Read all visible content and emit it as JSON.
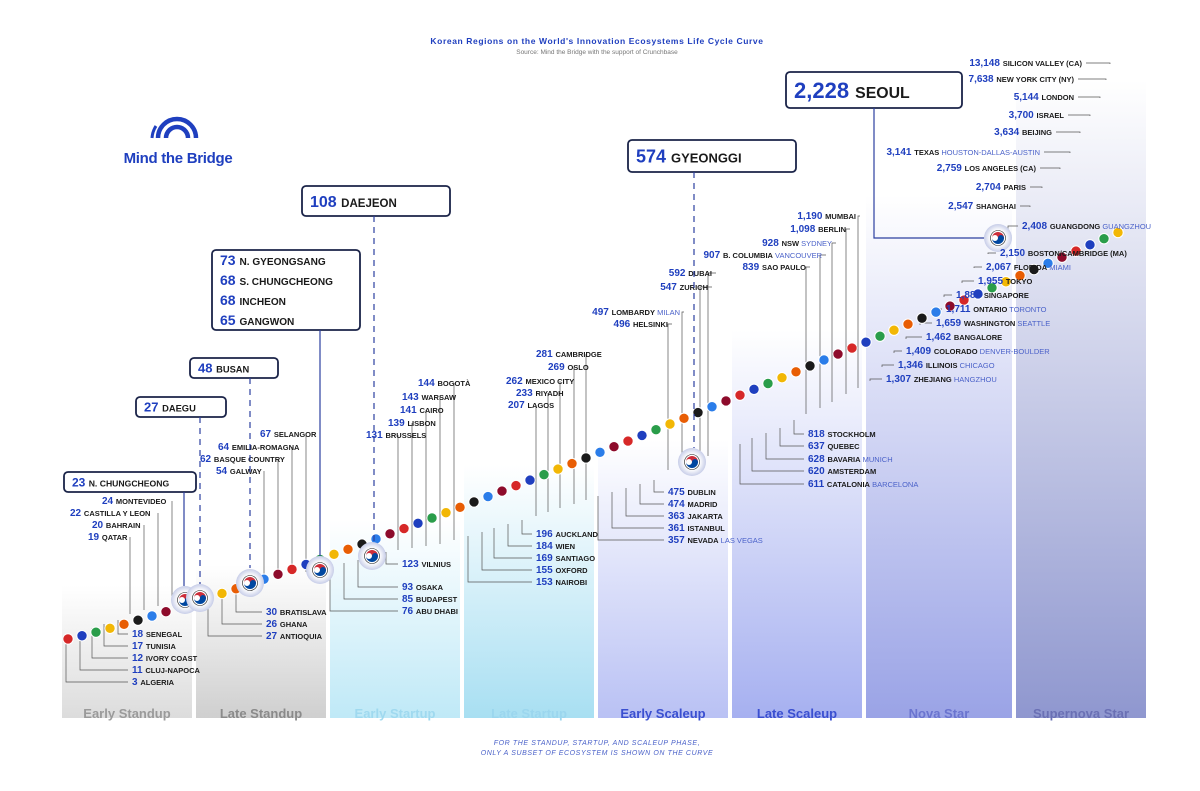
{
  "header": {
    "title": "Korean Regions on the World's Innovation Ecosystems Life Cycle Curve",
    "source": "Source: Mind the Bridge with the support of Crunchbase"
  },
  "logo": {
    "text": "Mind the Bridge"
  },
  "footnote": {
    "line1": "FOR THE STANDUP, STARTUP, AND SCALEUP PHASE,",
    "line2": "ONLY A SUBSET OF ECOSYSTEM IS SHOWN ON THE CURVE"
  },
  "colors": {
    "accent": "#1f3fbf",
    "dark": "#1a2348",
    "city": "#1a1a1a",
    "sub": "#4b62c9"
  },
  "chart_data": {
    "type": "scatter",
    "title": "Korean Regions on the World's Innovation Ecosystems Life Cycle Curve",
    "value_label": "count",
    "phases": [
      {
        "name": "Early Standup"
      },
      {
        "name": "Late Standup"
      },
      {
        "name": "Early Startup"
      },
      {
        "name": "Late Startup"
      },
      {
        "name": "Early Scaleup"
      },
      {
        "name": "Late Scaleup"
      },
      {
        "name": "Nova Star"
      },
      {
        "name": "Supernova Star"
      }
    ],
    "korean_regions": [
      {
        "value": "2,228",
        "name": "SEOUL"
      },
      {
        "value": "574",
        "name": "GYEONGGI"
      },
      {
        "value": "108",
        "name": "DAEJEON"
      },
      {
        "value": "73",
        "name": "N. GYEONGSANG"
      },
      {
        "value": "68",
        "name": "S. CHUNGCHEONG"
      },
      {
        "value": "68",
        "name": "INCHEON"
      },
      {
        "value": "65",
        "name": "GANGWON"
      },
      {
        "value": "48",
        "name": "BUSAN"
      },
      {
        "value": "27",
        "name": "DAEGU"
      },
      {
        "value": "23",
        "name": "N. CHUNGCHEONG"
      }
    ],
    "ecosystems": [
      {
        "value": "13,148",
        "name": "SILICON VALLEY (CA)"
      },
      {
        "value": "7,638",
        "name": "NEW YORK CITY (NY)"
      },
      {
        "value": "5,144",
        "name": "LONDON"
      },
      {
        "value": "3,700",
        "name": "ISRAEL"
      },
      {
        "value": "3,634",
        "name": "BEIJING"
      },
      {
        "value": "3,141",
        "name": "TEXAS",
        "sub": "HOUSTON-DALLAS-AUSTIN"
      },
      {
        "value": "2,759",
        "name": "LOS ANGELES (CA)"
      },
      {
        "value": "2,704",
        "name": "PARIS"
      },
      {
        "value": "2,547",
        "name": "SHANGHAI"
      },
      {
        "value": "2,408",
        "name": "GUANGDONG",
        "sub": "GUANGZHOU"
      },
      {
        "value": "2,150",
        "name": "BOSTON/CAMBRIDGE (MA)"
      },
      {
        "value": "2,067",
        "name": "FLORIDA",
        "sub": "MIAMI"
      },
      {
        "value": "1,955",
        "name": "TOKYO"
      },
      {
        "value": "1,887",
        "name": "SINGAPORE"
      },
      {
        "value": "1,711",
        "name": "ONTARIO",
        "sub": "TORONTO"
      },
      {
        "value": "1,659",
        "name": "WASHINGTON",
        "sub": "SEATTLE"
      },
      {
        "value": "1,462",
        "name": "BANGALORE"
      },
      {
        "value": "1,409",
        "name": "COLORADO",
        "sub": "DENVER-BOULDER"
      },
      {
        "value": "1,346",
        "name": "ILLINOIS",
        "sub": "CHICAGO"
      },
      {
        "value": "1,307",
        "name": "ZHEJIANG",
        "sub": "HANGZHOU"
      },
      {
        "value": "1,190",
        "name": "MUMBAI"
      },
      {
        "value": "1,098",
        "name": "BERLIN"
      },
      {
        "value": "928",
        "name": "NSW",
        "sub": "SYDNEY"
      },
      {
        "value": "907",
        "name": "B. COLUMBIA",
        "sub": "VANCOUVER"
      },
      {
        "value": "839",
        "name": "SAO PAULO"
      },
      {
        "value": "818",
        "name": "STOCKHOLM"
      },
      {
        "value": "637",
        "name": "QUEBEC"
      },
      {
        "value": "628",
        "name": "BAVARIA",
        "sub": "MUNICH"
      },
      {
        "value": "620",
        "name": "AMSTERDAM"
      },
      {
        "value": "611",
        "name": "CATALONIA",
        "sub": "BARCELONA"
      },
      {
        "value": "592",
        "name": "DUBAI"
      },
      {
        "value": "547",
        "name": "ZURICH"
      },
      {
        "value": "497",
        "name": "LOMBARDY",
        "sub": "MILAN"
      },
      {
        "value": "496",
        "name": "HELSINKI"
      },
      {
        "value": "475",
        "name": "DUBLIN"
      },
      {
        "value": "474",
        "name": "MADRID"
      },
      {
        "value": "363",
        "name": "JAKARTA"
      },
      {
        "value": "361",
        "name": "ISTANBUL"
      },
      {
        "value": "357",
        "name": "NEVADA",
        "sub": "LAS VEGAS"
      },
      {
        "value": "281",
        "name": "CAMBRIDGE"
      },
      {
        "value": "269",
        "name": "OSLO"
      },
      {
        "value": "262",
        "name": "MEXICO CITY"
      },
      {
        "value": "233",
        "name": "RIYADH"
      },
      {
        "value": "207",
        "name": "LAGOS"
      },
      {
        "value": "196",
        "name": "AUCKLAND"
      },
      {
        "value": "184",
        "name": "WIEN"
      },
      {
        "value": "169",
        "name": "SANTIAGO"
      },
      {
        "value": "155",
        "name": "OXFORD"
      },
      {
        "value": "153",
        "name": "NAIROBI"
      },
      {
        "value": "144",
        "name": "BOGOTÀ"
      },
      {
        "value": "143",
        "name": "WARSAW"
      },
      {
        "value": "141",
        "name": "CAIRO"
      },
      {
        "value": "139",
        "name": "LISBON"
      },
      {
        "value": "131",
        "name": "BRUSSELS"
      },
      {
        "value": "123",
        "name": "VILNIUS"
      },
      {
        "value": "93",
        "name": "OSAKA"
      },
      {
        "value": "85",
        "name": "BUDAPEST"
      },
      {
        "value": "76",
        "name": "ABU DHABI"
      },
      {
        "value": "67",
        "name": "SELANGOR"
      },
      {
        "value": "64",
        "name": "EMILIA-ROMAGNA"
      },
      {
        "value": "62",
        "name": "BASQUE COUNTRY"
      },
      {
        "value": "54",
        "name": "GALWAY"
      },
      {
        "value": "30",
        "name": "BRATISLAVA"
      },
      {
        "value": "26",
        "name": "GHANA"
      },
      {
        "value": "27",
        "name": "ANTIOQUIA"
      },
      {
        "value": "24",
        "name": "MONTEVIDEO"
      },
      {
        "value": "22",
        "name": "CASTILLA Y LEON"
      },
      {
        "value": "20",
        "name": "BAHRAIN"
      },
      {
        "value": "19",
        "name": "QATAR"
      },
      {
        "value": "18",
        "name": "SENEGAL"
      },
      {
        "value": "17",
        "name": "TUNISIA"
      },
      {
        "value": "12",
        "name": "IVORY COAST"
      },
      {
        "value": "11",
        "name": "CLUJ-NAPOCA"
      },
      {
        "value": "3",
        "name": "ALGERIA"
      }
    ]
  }
}
